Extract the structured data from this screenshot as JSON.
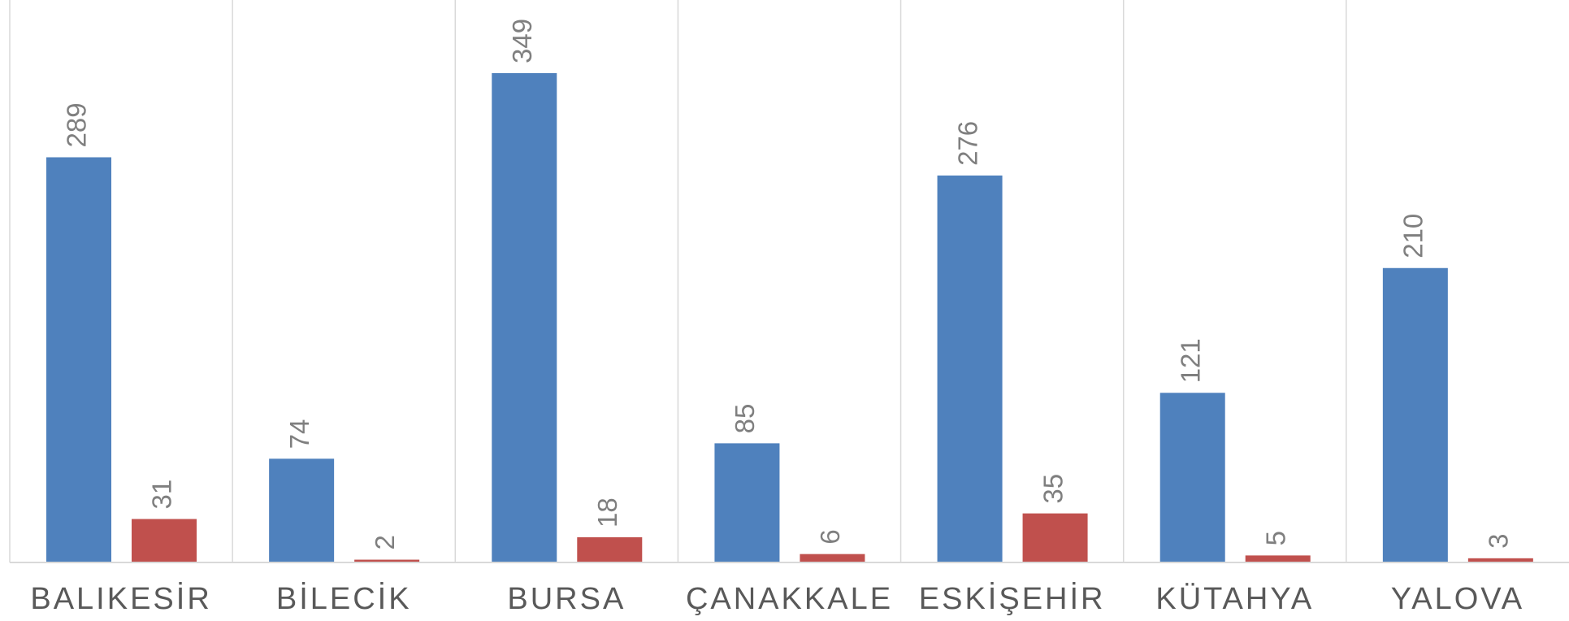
{
  "chart_data": {
    "type": "bar",
    "categories": [
      "BALIKESİR",
      "BİLECİK",
      "BURSA",
      "ÇANAKKALE",
      "ESKİŞEHİR",
      "KÜTAHYA",
      "YALOVA"
    ],
    "series": [
      {
        "color": "#4f81bd",
        "values": [
          289,
          74,
          349,
          85,
          276,
          121,
          210
        ]
      },
      {
        "color": "#c0504d",
        "values": [
          31,
          2,
          18,
          6,
          35,
          5,
          3
        ]
      }
    ]
  }
}
